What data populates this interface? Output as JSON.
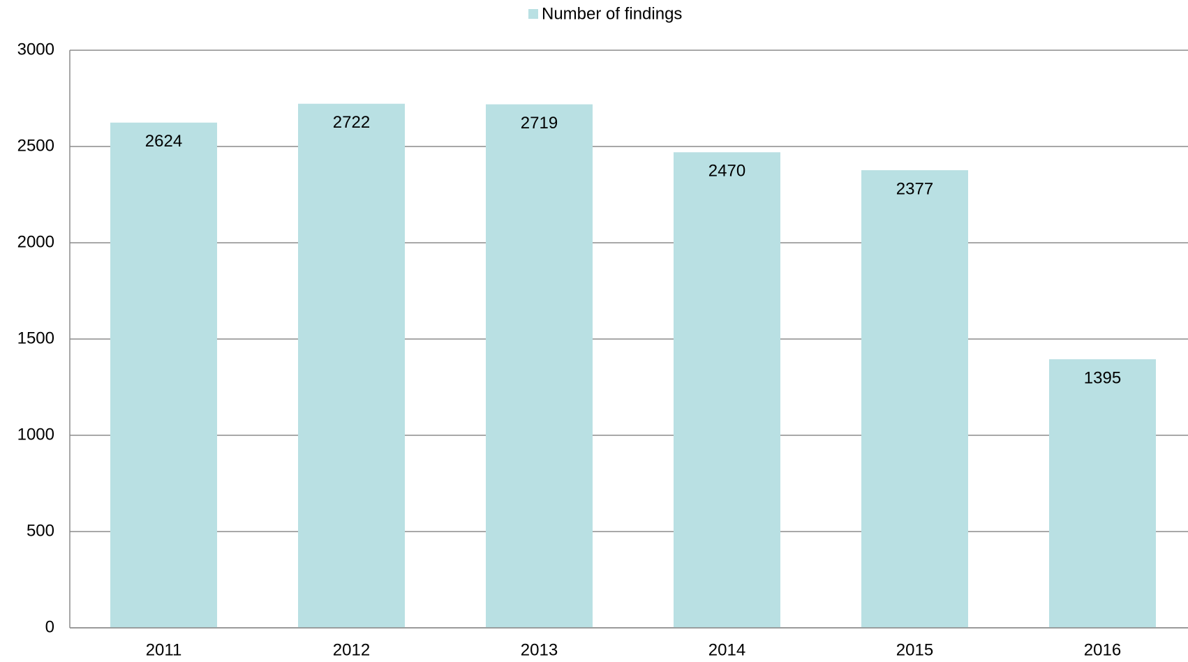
{
  "chart_data": {
    "type": "bar",
    "categories": [
      "2011",
      "2012",
      "2013",
      "2014",
      "2015",
      "2016"
    ],
    "series": [
      {
        "name": "Number of findings",
        "color": "#b9e0e3",
        "values": [
          2624,
          2722,
          2719,
          2470,
          2377,
          1395
        ]
      }
    ],
    "ylim": [
      0,
      3000
    ],
    "yticks": [
      0,
      500,
      1000,
      1500,
      2000,
      2500,
      3000
    ],
    "grid": true,
    "legend": "top"
  }
}
